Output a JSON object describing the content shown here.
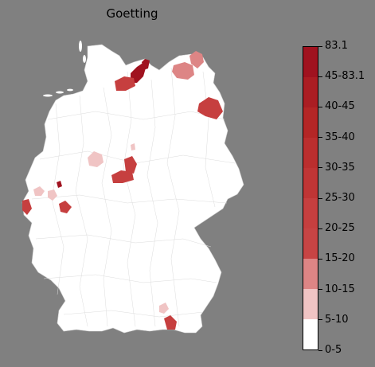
{
  "title": "Goetting",
  "legend": {
    "labels": [
      "0-5",
      "5-10",
      "10-15",
      "15-20",
      "20-25",
      "25-30",
      "30-35",
      "35-40",
      "40-45",
      "45-83.1",
      "83.1"
    ],
    "colors": [
      "#ffffff",
      "#f0c4c4",
      "#dd8585",
      "#c74444",
      "#c63f3f",
      "#c03535",
      "#bb2e2e",
      "#b42626",
      "#ab1d23",
      "#a0121f"
    ]
  },
  "colors": {
    "background": "#808080",
    "land": "#ffffff",
    "border": "#cfcfcf"
  },
  "regions": [
    {
      "name": "kiel-area",
      "bin": 9
    },
    {
      "name": "luebeck-area",
      "bin": 9
    },
    {
      "name": "hamburg-area",
      "bin": 4
    },
    {
      "name": "rostock-area",
      "bin": 2
    },
    {
      "name": "ruegen-area",
      "bin": 2
    },
    {
      "name": "berlin-east-area",
      "bin": 4
    },
    {
      "name": "emsland-area",
      "bin": 1
    },
    {
      "name": "goettingen-area",
      "bin": 4
    },
    {
      "name": "kassel-area",
      "bin": 4
    },
    {
      "name": "nordhessen-area",
      "bin": 1
    },
    {
      "name": "cologne-area",
      "bin": 1
    },
    {
      "name": "bonn-area",
      "bin": 1
    },
    {
      "name": "aachen-area",
      "bin": 4
    },
    {
      "name": "wetterau-area",
      "bin": 4
    },
    {
      "name": "siegen-area",
      "bin": 9
    },
    {
      "name": "munich-south-area",
      "bin": 4
    },
    {
      "name": "munich-area",
      "bin": 1
    }
  ]
}
